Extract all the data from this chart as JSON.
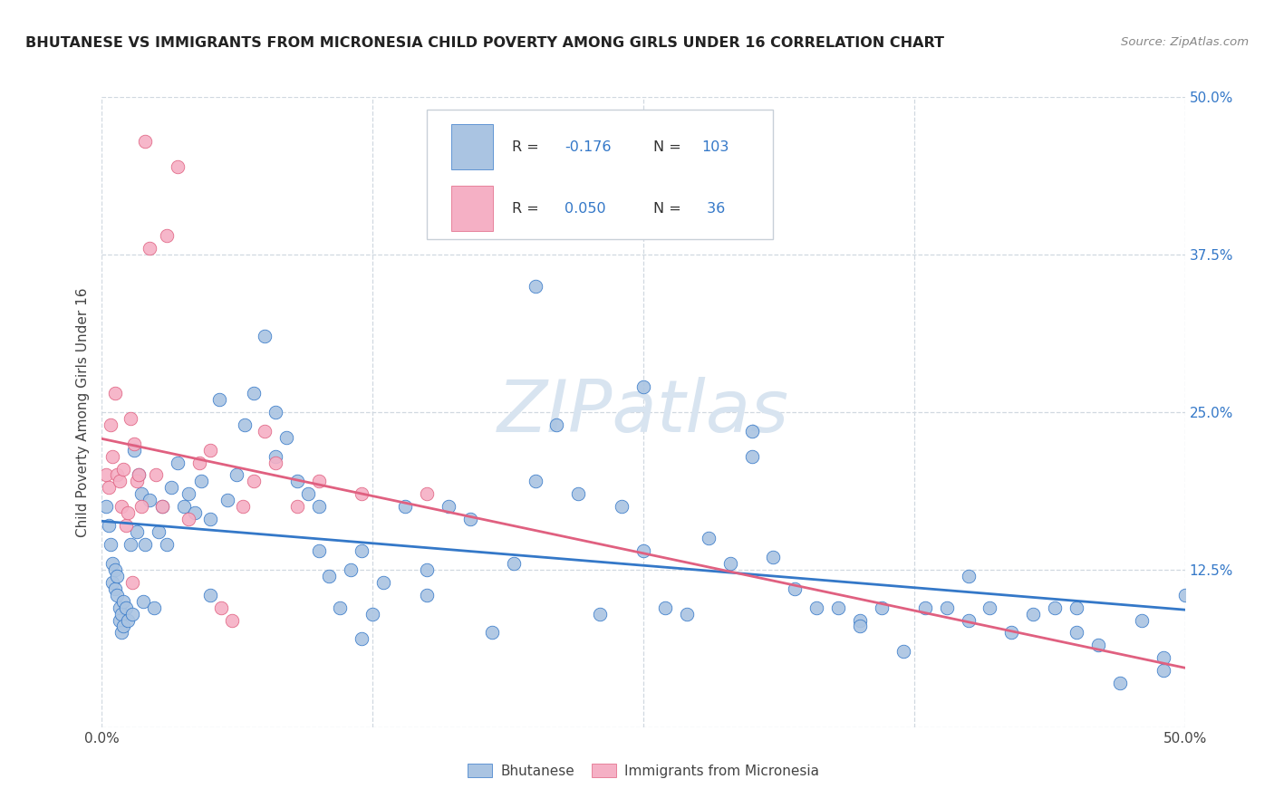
{
  "title": "BHUTANESE VS IMMIGRANTS FROM MICRONESIA CHILD POVERTY AMONG GIRLS UNDER 16 CORRELATION CHART",
  "source": "Source: ZipAtlas.com",
  "ylabel": "Child Poverty Among Girls Under 16",
  "blue_R": -0.176,
  "blue_N": 103,
  "pink_R": 0.05,
  "pink_N": 36,
  "blue_color": "#aac4e2",
  "pink_color": "#f5b0c5",
  "blue_line_color": "#3478c8",
  "pink_line_color": "#e06080",
  "watermark_color": "#d8e4f0",
  "watermark_text": "ZIPatlas",
  "grid_color": "#d0d8e0",
  "legend_edge_color": "#c8d0d8",
  "blue_scatter_x": [
    0.002,
    0.003,
    0.004,
    0.005,
    0.005,
    0.006,
    0.006,
    0.007,
    0.007,
    0.008,
    0.008,
    0.009,
    0.009,
    0.01,
    0.01,
    0.011,
    0.012,
    0.013,
    0.014,
    0.015,
    0.016,
    0.017,
    0.018,
    0.019,
    0.02,
    0.022,
    0.024,
    0.026,
    0.028,
    0.03,
    0.032,
    0.035,
    0.038,
    0.04,
    0.043,
    0.046,
    0.05,
    0.054,
    0.058,
    0.062,
    0.066,
    0.07,
    0.075,
    0.08,
    0.085,
    0.09,
    0.095,
    0.1,
    0.105,
    0.11,
    0.115,
    0.12,
    0.125,
    0.13,
    0.14,
    0.15,
    0.16,
    0.17,
    0.18,
    0.19,
    0.2,
    0.21,
    0.22,
    0.23,
    0.24,
    0.25,
    0.26,
    0.27,
    0.28,
    0.29,
    0.3,
    0.31,
    0.32,
    0.33,
    0.34,
    0.35,
    0.36,
    0.37,
    0.38,
    0.39,
    0.4,
    0.41,
    0.42,
    0.43,
    0.44,
    0.45,
    0.46,
    0.47,
    0.48,
    0.49,
    0.05,
    0.08,
    0.1,
    0.12,
    0.15,
    0.2,
    0.25,
    0.3,
    0.35,
    0.4,
    0.45,
    0.49,
    0.5
  ],
  "blue_scatter_y": [
    0.175,
    0.16,
    0.145,
    0.13,
    0.115,
    0.125,
    0.11,
    0.12,
    0.105,
    0.095,
    0.085,
    0.09,
    0.075,
    0.1,
    0.08,
    0.095,
    0.085,
    0.145,
    0.09,
    0.22,
    0.155,
    0.2,
    0.185,
    0.1,
    0.145,
    0.18,
    0.095,
    0.155,
    0.175,
    0.145,
    0.19,
    0.21,
    0.175,
    0.185,
    0.17,
    0.195,
    0.165,
    0.26,
    0.18,
    0.2,
    0.24,
    0.265,
    0.31,
    0.25,
    0.23,
    0.195,
    0.185,
    0.14,
    0.12,
    0.095,
    0.125,
    0.14,
    0.09,
    0.115,
    0.175,
    0.125,
    0.175,
    0.165,
    0.075,
    0.13,
    0.35,
    0.24,
    0.185,
    0.09,
    0.175,
    0.14,
    0.095,
    0.09,
    0.15,
    0.13,
    0.235,
    0.135,
    0.11,
    0.095,
    0.095,
    0.085,
    0.095,
    0.06,
    0.095,
    0.095,
    0.085,
    0.095,
    0.075,
    0.09,
    0.095,
    0.075,
    0.065,
    0.035,
    0.085,
    0.045,
    0.105,
    0.215,
    0.175,
    0.07,
    0.105,
    0.195,
    0.27,
    0.215,
    0.08,
    0.12,
    0.095,
    0.055,
    0.105
  ],
  "pink_scatter_x": [
    0.002,
    0.003,
    0.004,
    0.005,
    0.006,
    0.007,
    0.008,
    0.009,
    0.01,
    0.011,
    0.012,
    0.013,
    0.014,
    0.015,
    0.016,
    0.017,
    0.018,
    0.02,
    0.022,
    0.025,
    0.028,
    0.03,
    0.035,
    0.04,
    0.045,
    0.05,
    0.055,
    0.06,
    0.065,
    0.07,
    0.075,
    0.08,
    0.09,
    0.1,
    0.12,
    0.15
  ],
  "pink_scatter_y": [
    0.2,
    0.19,
    0.24,
    0.215,
    0.265,
    0.2,
    0.195,
    0.175,
    0.205,
    0.16,
    0.17,
    0.245,
    0.115,
    0.225,
    0.195,
    0.2,
    0.175,
    0.465,
    0.38,
    0.2,
    0.175,
    0.39,
    0.445,
    0.165,
    0.21,
    0.22,
    0.095,
    0.085,
    0.175,
    0.195,
    0.235,
    0.21,
    0.175,
    0.195,
    0.185,
    0.185
  ]
}
